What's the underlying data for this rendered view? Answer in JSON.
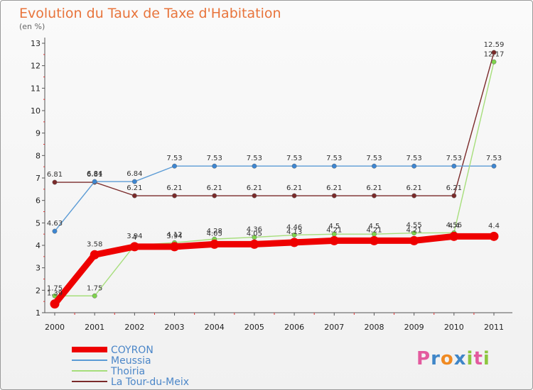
{
  "logo": {
    "text": "Proxiti",
    "colors": [
      "#e35a9e",
      "#3f86c8",
      "#f08a22",
      "#3f86c8",
      "#8dc63f",
      "#e35a9e",
      "#8dc63f"
    ]
  },
  "chart_data": {
    "type": "line",
    "title": "Evolution du Taux de Taxe d'Habitation",
    "subtitle": "(en %)",
    "xlabel": "",
    "ylabel": "(en %)",
    "ylim": [
      1,
      13
    ],
    "yticks": [
      "1",
      "2",
      "3",
      "4",
      "5",
      "6",
      "7",
      "8",
      "9",
      "10",
      "11",
      "12",
      "13"
    ],
    "categories": [
      "2000",
      "2001",
      "2002",
      "2003",
      "2004",
      "2005",
      "2006",
      "2007",
      "2008",
      "2009",
      "2010",
      "2011"
    ],
    "legend_position": "bottom-left",
    "series": [
      {
        "name": "La Tour-du-Meix",
        "color": "#7a2a2a",
        "markerFill": "#7a2a2a",
        "values": [
          6.81,
          6.81,
          6.21,
          6.21,
          6.21,
          6.21,
          6.21,
          6.21,
          6.21,
          6.21,
          6.21,
          12.59
        ],
        "labels": [
          "6.81",
          "6.81",
          "6.21",
          "6.21",
          "6.21",
          "6.21",
          "6.21",
          "6.21",
          "6.21",
          "6.21",
          "6.21",
          "12.59"
        ]
      },
      {
        "name": "Meussia",
        "color": "#5b9bd5",
        "markerFill": "#3d86d1",
        "values": [
          4.63,
          6.84,
          6.84,
          7.53,
          7.53,
          7.53,
          7.53,
          7.53,
          7.53,
          7.53,
          7.53,
          7.53
        ],
        "labels": [
          "4.63",
          "6.84",
          "6.84",
          "7.53",
          "7.53",
          "7.53",
          "7.53",
          "7.53",
          "7.53",
          "7.53",
          "7.53",
          "7.53"
        ]
      },
      {
        "name": "Thoiria",
        "color": "#a6de7b",
        "markerFill": "#7ed44b",
        "values": [
          1.75,
          1.75,
          4.0,
          4.12,
          4.28,
          4.36,
          4.46,
          4.5,
          4.5,
          4.55,
          4.56,
          12.17
        ],
        "labels": [
          "1.75",
          "1.75",
          "4",
          "4.12",
          "4.28",
          "4.36",
          "4.46",
          "4.5",
          "4.5",
          "4.55",
          "4.56",
          "12.17"
        ]
      },
      {
        "name": "COYRON",
        "color": "#ee0000",
        "markerFill": "#ee0000",
        "values": [
          1.39,
          3.58,
          3.94,
          3.94,
          4.05,
          4.05,
          4.13,
          4.21,
          4.21,
          4.21,
          4.4,
          4.4
        ],
        "labels": [
          "1.39",
          "3.58",
          "3.94",
          "3.94",
          "4.05",
          "4.05",
          "4.13",
          "4.21",
          "4.21",
          "4.21",
          "4.4",
          "4.4"
        ]
      }
    ],
    "legend": [
      "COYRON",
      "Meussia",
      "Thoiria",
      "La Tour-du-Meix"
    ]
  }
}
